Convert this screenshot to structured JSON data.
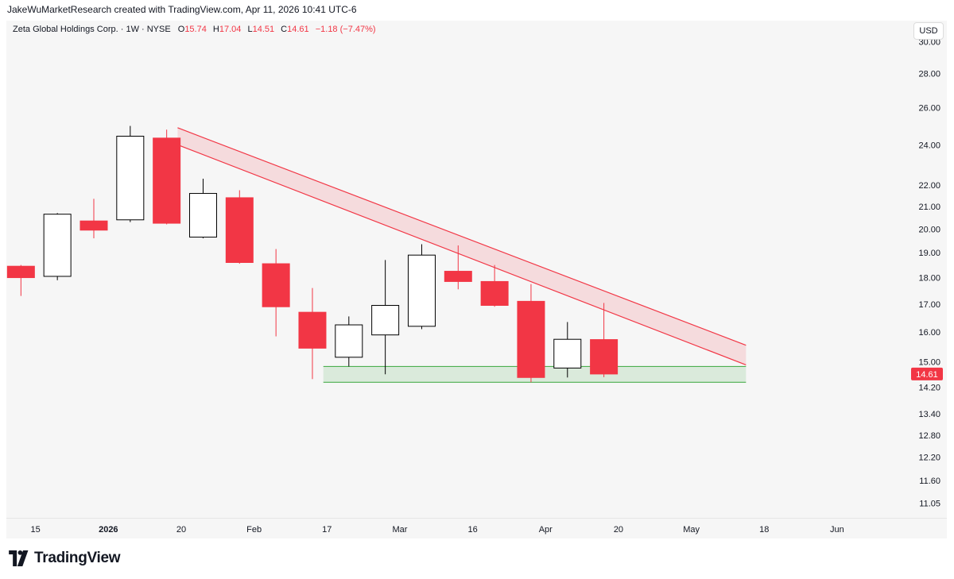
{
  "credit": "JakeWuMarketResearch created with TradingView.com, Apr 11, 2026 10:41 UTC-6",
  "legend": {
    "symbol": "Zeta Global Holdings Corp. · 1W · NYSE",
    "o_label": "O",
    "o_value": "15.74",
    "h_label": "H",
    "h_value": "17.04",
    "l_label": "L",
    "l_value": "14.51",
    "c_label": "C",
    "c_value": "14.61",
    "change": "−1.18 (−7.47%)"
  },
  "currency": "USD",
  "brand": {
    "name": "TradingView"
  },
  "colors": {
    "up_body": "#ffffff",
    "up_border": "#000000",
    "down": "#f23645",
    "resistance": "#f23645",
    "support": "#4caf50",
    "last_price_bg": "#f23645"
  },
  "chart_data": {
    "type": "candlestick",
    "title": "Zeta Global Holdings Corp. · 1W · NYSE",
    "ylabel": "USD",
    "yscale": "log",
    "ylim": [
      10.7,
      31.4
    ],
    "y_ticks": [
      {
        "value": 30.0,
        "label": "30.00"
      },
      {
        "value": 28.0,
        "label": "28.00"
      },
      {
        "value": 26.0,
        "label": "26.00"
      },
      {
        "value": 24.0,
        "label": "24.00"
      },
      {
        "value": 22.0,
        "label": "22.00"
      },
      {
        "value": 21.0,
        "label": "21.00"
      },
      {
        "value": 20.0,
        "label": "20.00"
      },
      {
        "value": 19.0,
        "label": "19.00"
      },
      {
        "value": 18.0,
        "label": "18.00"
      },
      {
        "value": 17.0,
        "label": "17.00"
      },
      {
        "value": 16.0,
        "label": "16.00"
      },
      {
        "value": 15.0,
        "label": "15.00"
      },
      {
        "value": 14.2,
        "label": "14.20"
      },
      {
        "value": 13.4,
        "label": "13.40"
      },
      {
        "value": 12.8,
        "label": "12.80"
      },
      {
        "value": 12.2,
        "label": "12.20"
      },
      {
        "value": 11.6,
        "label": "11.60"
      },
      {
        "value": 11.05,
        "label": "11.05"
      }
    ],
    "x_ticks": [
      {
        "week": 0.4,
        "label": "15",
        "bold": false
      },
      {
        "week": 2.4,
        "label": "2026",
        "bold": true
      },
      {
        "week": 4.4,
        "label": "20",
        "bold": false
      },
      {
        "week": 6.4,
        "label": "Feb",
        "bold": false
      },
      {
        "week": 8.4,
        "label": "17",
        "bold": false
      },
      {
        "week": 10.4,
        "label": "Mar",
        "bold": false
      },
      {
        "week": 12.4,
        "label": "16",
        "bold": false
      },
      {
        "week": 14.4,
        "label": "Apr",
        "bold": false
      },
      {
        "week": 16.4,
        "label": "20",
        "bold": false
      },
      {
        "week": 18.4,
        "label": "May",
        "bold": false
      },
      {
        "week": 20.4,
        "label": "18",
        "bold": false
      },
      {
        "week": 22.4,
        "label": "Jun",
        "bold": false
      }
    ],
    "xlim": [
      -0.4,
      24.3
    ],
    "candles": [
      {
        "week": 0,
        "open": 18.45,
        "high": 18.5,
        "low": 17.3,
        "close": 18.0
      },
      {
        "week": 1,
        "open": 18.05,
        "high": 20.7,
        "low": 17.9,
        "close": 20.65
      },
      {
        "week": 2,
        "open": 20.35,
        "high": 21.35,
        "low": 19.6,
        "close": 19.95
      },
      {
        "week": 3,
        "open": 20.4,
        "high": 25.0,
        "low": 20.3,
        "close": 24.45
      },
      {
        "week": 4,
        "open": 24.35,
        "high": 24.8,
        "low": 20.2,
        "close": 20.25
      },
      {
        "week": 5,
        "open": 19.65,
        "high": 22.3,
        "low": 19.6,
        "close": 21.6
      },
      {
        "week": 6,
        "open": 21.4,
        "high": 21.75,
        "low": 18.55,
        "close": 18.6
      },
      {
        "week": 7,
        "open": 18.55,
        "high": 19.15,
        "low": 15.85,
        "close": 16.9
      },
      {
        "week": 8,
        "open": 16.7,
        "high": 17.6,
        "low": 14.45,
        "close": 15.45
      },
      {
        "week": 9,
        "open": 15.15,
        "high": 16.55,
        "low": 14.85,
        "close": 16.25
      },
      {
        "week": 10,
        "open": 15.9,
        "high": 18.7,
        "low": 14.6,
        "close": 16.95
      },
      {
        "week": 11,
        "open": 16.2,
        "high": 19.35,
        "low": 16.1,
        "close": 18.9
      },
      {
        "week": 12,
        "open": 18.25,
        "high": 19.3,
        "low": 17.55,
        "close": 17.85
      },
      {
        "week": 13,
        "open": 17.85,
        "high": 18.5,
        "low": 16.9,
        "close": 16.95
      },
      {
        "week": 14,
        "open": 17.1,
        "high": 17.75,
        "low": 14.35,
        "close": 14.5
      },
      {
        "week": 15,
        "open": 14.8,
        "high": 16.35,
        "low": 14.5,
        "close": 15.75
      },
      {
        "week": 16,
        "open": 15.74,
        "high": 17.04,
        "low": 14.51,
        "close": 14.61
      }
    ],
    "last_price": {
      "value": 14.61,
      "label": "14.61"
    },
    "annotations": [
      {
        "type": "descending-channel",
        "name": "resistance",
        "x_start": 4.3,
        "x_end": 19.9,
        "upper_start": 24.9,
        "upper_end": 15.55,
        "lower_start": 24.0,
        "lower_end": 14.9
      },
      {
        "type": "support-zone",
        "name": "support",
        "x_start": 8.3,
        "x_end": 19.9,
        "upper": 14.85,
        "lower": 14.35
      }
    ]
  }
}
